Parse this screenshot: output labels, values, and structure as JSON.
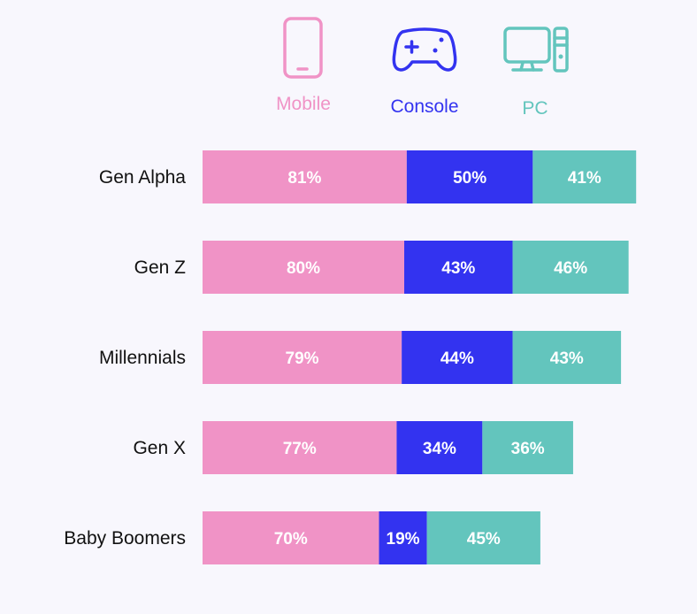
{
  "chart_data": {
    "type": "bar",
    "stacked": true,
    "orientation": "horizontal",
    "categories": [
      "Gen Alpha",
      "Gen Z",
      "Millennials",
      "Gen X",
      "Baby Boomers"
    ],
    "series": [
      {
        "name": "Mobile",
        "color": "#f093c6",
        "icon": "mobile-phone-icon",
        "values": [
          81,
          80,
          79,
          77,
          70
        ]
      },
      {
        "name": "Console",
        "color": "#3333f0",
        "icon": "gamepad-icon",
        "values": [
          50,
          43,
          44,
          34,
          19
        ]
      },
      {
        "name": "PC",
        "color": "#63c5bd",
        "icon": "desktop-computer-icon",
        "values": [
          41,
          46,
          43,
          36,
          45
        ]
      }
    ],
    "value_suffix": "%",
    "legend_placement": "top",
    "grid": false
  }
}
